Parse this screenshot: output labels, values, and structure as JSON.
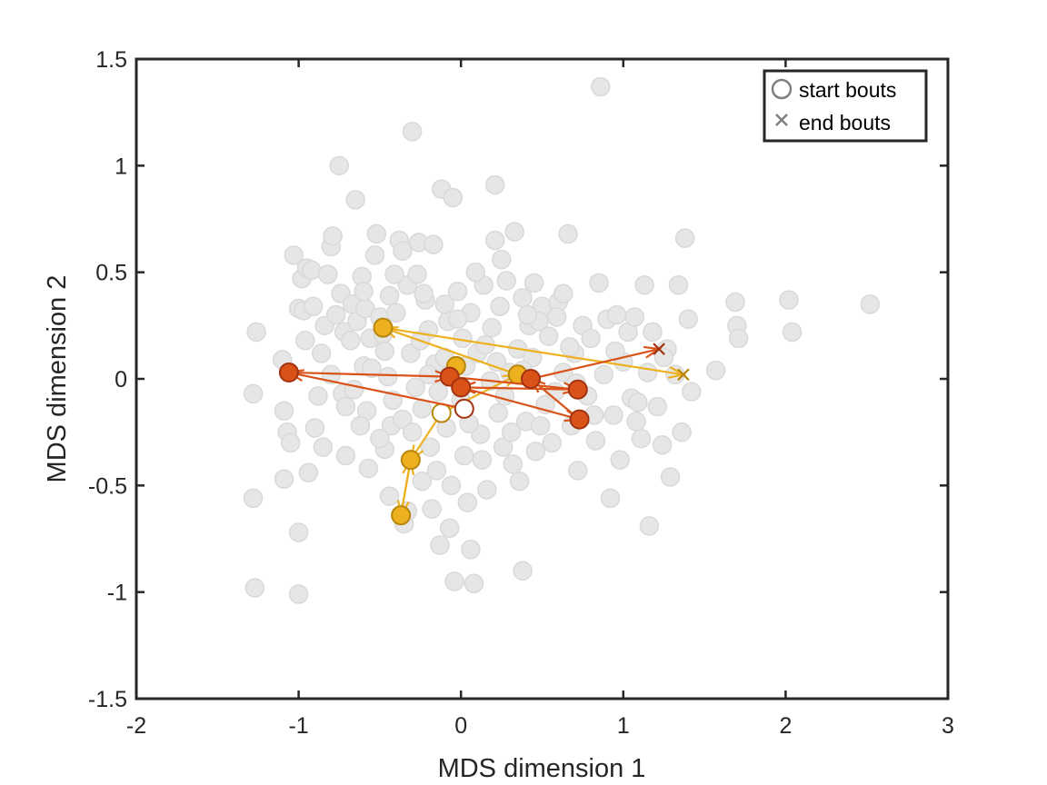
{
  "chart_data": {
    "type": "scatter",
    "xlabel": "MDS dimension 1",
    "ylabel": "MDS dimension 2",
    "xlim": [
      -2,
      3
    ],
    "ylim": [
      -1.5,
      1.5
    ],
    "xticks": [
      -2,
      -1,
      0,
      1,
      2,
      3
    ],
    "yticks": [
      -1.5,
      -1,
      -0.5,
      0,
      0.5,
      1,
      1.5
    ],
    "xtick_labels": [
      "-2",
      "-1",
      "0",
      "1",
      "2",
      "3"
    ],
    "ytick_labels": [
      "-1.5",
      "-1",
      "-0.5",
      "0",
      "0.5",
      "1",
      "1.5"
    ],
    "grid": false,
    "legend": {
      "placement": "top-right",
      "entries": [
        {
          "label": "start bouts",
          "marker": "circle"
        },
        {
          "label": "end bouts",
          "marker": "x"
        }
      ]
    },
    "colors": {
      "background_points": "#e6e6e6",
      "background_edge": "#d9d9d9",
      "orange_series": "#edb120",
      "orange_edge": "#b8860b",
      "red_series": "#d95319",
      "red_edge": "#a23210",
      "legend_marker": "#808080"
    },
    "background_points": [
      [
        -1.28,
        -0.07
      ],
      [
        -1.26,
        0.22
      ],
      [
        -1.28,
        -0.56
      ],
      [
        -1.27,
        -0.98
      ],
      [
        -1.1,
        0.09
      ],
      [
        -1.09,
        -0.15
      ],
      [
        -1.07,
        -0.25
      ],
      [
        -1.09,
        -0.47
      ],
      [
        -1.03,
        0.58
      ],
      [
        -1.0,
        0.33
      ],
      [
        -0.98,
        0.47
      ],
      [
        -1.0,
        -0.72
      ],
      [
        -1.0,
        -1.01
      ],
      [
        -0.97,
        0.32
      ],
      [
        -0.94,
        -0.44
      ],
      [
        -0.95,
        0.52
      ],
      [
        -0.92,
        0.51
      ],
      [
        -0.91,
        0.34
      ],
      [
        -0.9,
        -0.23
      ],
      [
        -0.86,
        0.12
      ],
      [
        -0.84,
        0.25
      ],
      [
        -0.82,
        0.49
      ],
      [
        -0.8,
        0.62
      ],
      [
        -0.79,
        0.67
      ],
      [
        -0.75,
        1.0
      ],
      [
        -0.74,
        0.4
      ],
      [
        -0.73,
        -0.07
      ],
      [
        -0.72,
        0.22
      ],
      [
        -0.71,
        -0.36
      ],
      [
        -0.67,
        0.35
      ],
      [
        -0.65,
        0.84
      ],
      [
        -0.64,
        0.27
      ],
      [
        -0.61,
        0.48
      ],
      [
        -0.6,
        0.06
      ],
      [
        -0.59,
        0.33
      ],
      [
        -0.58,
        -0.15
      ],
      [
        -0.56,
        0.19
      ],
      [
        -0.53,
        0.58
      ],
      [
        -0.52,
        0.68
      ],
      [
        -0.5,
        0.29
      ],
      [
        -0.48,
        0.21
      ],
      [
        -0.47,
        -0.33
      ],
      [
        -0.45,
        0.01
      ],
      [
        -0.44,
        0.39
      ],
      [
        -0.43,
        -0.22
      ],
      [
        -0.4,
        0.31
      ],
      [
        -0.38,
        0.65
      ],
      [
        -0.36,
        0.6
      ],
      [
        -0.35,
        -0.68
      ],
      [
        -0.33,
        0.44
      ],
      [
        -0.31,
        0.12
      ],
      [
        -0.3,
        1.16
      ],
      [
        -0.28,
        -0.04
      ],
      [
        -0.27,
        0.49
      ],
      [
        -0.26,
        0.64
      ],
      [
        -0.24,
        -0.14
      ],
      [
        -0.22,
        0.37
      ],
      [
        -0.2,
        0.23
      ],
      [
        -0.19,
        -0.32
      ],
      [
        -0.17,
        0.63
      ],
      [
        -0.16,
        0.07
      ],
      [
        -0.15,
        -0.43
      ],
      [
        -0.13,
        -0.78
      ],
      [
        -0.12,
        0.89
      ],
      [
        -0.1,
        0.1
      ],
      [
        -0.09,
        -0.23
      ],
      [
        -0.08,
        0.27
      ],
      [
        -0.06,
        -0.5
      ],
      [
        -0.05,
        0.85
      ],
      [
        -0.04,
        -0.95
      ],
      [
        -0.02,
        0.41
      ],
      [
        0.0,
        -0.1
      ],
      [
        0.01,
        0.19
      ],
      [
        0.02,
        -0.36
      ],
      [
        0.04,
        -0.58
      ],
      [
        0.06,
        0.31
      ],
      [
        0.08,
        -0.96
      ],
      [
        0.1,
        0.12
      ],
      [
        0.12,
        -0.26
      ],
      [
        0.14,
        0.44
      ],
      [
        0.16,
        -0.52
      ],
      [
        0.18,
        -0.01
      ],
      [
        0.19,
        0.24
      ],
      [
        0.21,
        0.65
      ],
      [
        0.23,
        -0.16
      ],
      [
        0.24,
        0.34
      ],
      [
        0.21,
        0.91
      ],
      [
        0.26,
        -0.32
      ],
      [
        0.28,
        0.46
      ],
      [
        0.3,
        0.03
      ],
      [
        0.32,
        -0.4
      ],
      [
        0.33,
        0.69
      ],
      [
        0.35,
        0.14
      ],
      [
        0.36,
        -0.48
      ],
      [
        0.38,
        0.38
      ],
      [
        0.4,
        -0.2
      ],
      [
        0.42,
        0.25
      ],
      [
        0.44,
        0.1
      ],
      [
        0.46,
        -0.34
      ],
      [
        0.38,
        -0.9
      ],
      [
        0.5,
        0.34
      ],
      [
        0.52,
        -0.12
      ],
      [
        0.54,
        0.2
      ],
      [
        0.56,
        -0.3
      ],
      [
        0.6,
        0.36
      ],
      [
        0.63,
        0.03
      ],
      [
        0.66,
        0.68
      ],
      [
        0.68,
        -0.22
      ],
      [
        0.7,
        0.12
      ],
      [
        0.72,
        -0.43
      ],
      [
        0.75,
        0.25
      ],
      [
        0.78,
        -0.08
      ],
      [
        0.8,
        0.19
      ],
      [
        0.83,
        -0.29
      ],
      [
        0.85,
        0.45
      ],
      [
        0.86,
        1.37
      ],
      [
        0.88,
        0.02
      ],
      [
        0.9,
        0.28
      ],
      [
        0.92,
        -0.56
      ],
      [
        0.94,
        -0.17
      ],
      [
        0.96,
        0.3
      ],
      [
        0.98,
        -0.38
      ],
      [
        1.0,
        0.08
      ],
      [
        1.03,
        0.22
      ],
      [
        1.05,
        -0.09
      ],
      [
        1.07,
        0.29
      ],
      [
        1.08,
        -0.2
      ],
      [
        1.11,
        -0.28
      ],
      [
        1.13,
        0.44
      ],
      [
        1.15,
        0.03
      ],
      [
        1.16,
        -0.69
      ],
      [
        1.18,
        0.22
      ],
      [
        1.21,
        -0.13
      ],
      [
        1.24,
        -0.31
      ],
      [
        1.27,
        0.14
      ],
      [
        1.29,
        -0.46
      ],
      [
        1.32,
        0.02
      ],
      [
        1.34,
        0.44
      ],
      [
        1.36,
        -0.25
      ],
      [
        1.38,
        0.66
      ],
      [
        1.4,
        0.28
      ],
      [
        1.42,
        -0.06
      ],
      [
        1.57,
        0.04
      ],
      [
        1.69,
        0.36
      ],
      [
        1.7,
        0.25
      ],
      [
        1.71,
        0.19
      ],
      [
        2.02,
        0.37
      ],
      [
        2.04,
        0.22
      ],
      [
        2.52,
        0.35
      ],
      [
        -0.55,
        0.05
      ],
      [
        -0.68,
        0.18
      ],
      [
        -0.62,
        -0.22
      ],
      [
        -0.47,
        0.13
      ],
      [
        -0.36,
        -0.19
      ],
      [
        -0.25,
        0.18
      ],
      [
        -0.14,
        -0.06
      ],
      [
        -0.02,
        0.28
      ],
      [
        0.05,
        -0.21
      ],
      [
        0.15,
        0.16
      ],
      [
        0.27,
        -0.08
      ],
      [
        0.38,
        0.04
      ],
      [
        0.48,
        0.27
      ],
      [
        0.58,
        -0.06
      ],
      [
        0.67,
        0.15
      ],
      [
        -0.8,
        0.02
      ],
      [
        -0.71,
        -0.13
      ],
      [
        -0.88,
        -0.08
      ],
      [
        -0.77,
        0.3
      ],
      [
        -0.66,
        -0.05
      ],
      [
        -0.5,
        -0.28
      ],
      [
        -0.42,
        -0.1
      ],
      [
        -0.3,
        -0.25
      ],
      [
        -0.2,
        0.02
      ],
      [
        -0.1,
        0.35
      ],
      [
        0.03,
        0.06
      ],
      [
        0.13,
        -0.38
      ],
      [
        0.22,
        0.08
      ],
      [
        0.31,
        -0.25
      ],
      [
        0.41,
        0.3
      ],
      [
        0.49,
        -0.22
      ],
      [
        0.59,
        0.29
      ],
      [
        0.71,
        -0.02
      ],
      [
        0.82,
        -0.17
      ],
      [
        0.95,
        0.13
      ],
      [
        1.09,
        -0.11
      ],
      [
        1.25,
        0.1
      ],
      [
        -1.05,
        -0.3
      ],
      [
        -0.96,
        0.18
      ],
      [
        -0.85,
        -0.32
      ],
      [
        -0.57,
        -0.42
      ],
      [
        -0.44,
        -0.55
      ],
      [
        -0.33,
        -0.62
      ],
      [
        -0.24,
        -0.48
      ],
      [
        -0.18,
        -0.61
      ],
      [
        -0.07,
        -0.7
      ],
      [
        0.06,
        -0.8
      ],
      [
        -0.6,
        0.41
      ],
      [
        -0.41,
        0.49
      ],
      [
        -0.23,
        0.4
      ],
      [
        0.09,
        0.5
      ],
      [
        0.25,
        0.56
      ],
      [
        0.45,
        0.45
      ],
      [
        0.63,
        0.4
      ]
    ],
    "series": [
      {
        "color_key": "orange_series",
        "start": [
          -0.12,
          -0.16
        ],
        "points": [
          [
            -0.48,
            0.24
          ],
          [
            -0.03,
            0.06
          ],
          [
            0.35,
            0.02
          ],
          [
            -0.31,
            -0.38
          ],
          [
            -0.37,
            -0.64
          ]
        ],
        "end": [
          1.37,
          0.02
        ],
        "arrows": [
          [
            [
              -0.12,
              -0.16
            ],
            [
              -0.31,
              -0.38
            ]
          ],
          [
            [
              -0.31,
              -0.38
            ],
            [
              -0.37,
              -0.64
            ]
          ],
          [
            [
              -0.37,
              -0.64
            ],
            [
              -0.31,
              -0.38
            ]
          ],
          [
            [
              -0.12,
              -0.16
            ],
            [
              0.35,
              0.02
            ]
          ],
          [
            [
              0.35,
              0.02
            ],
            [
              -0.48,
              0.24
            ]
          ],
          [
            [
              -0.48,
              0.24
            ],
            [
              1.37,
              0.02
            ]
          ]
        ]
      },
      {
        "color_key": "red_series",
        "start": [
          0.02,
          -0.14
        ],
        "points": [
          [
            -1.06,
            0.03
          ],
          [
            -0.07,
            0.01
          ],
          [
            0.0,
            -0.04
          ],
          [
            0.43,
            0.0
          ],
          [
            0.72,
            -0.05
          ],
          [
            0.73,
            -0.19
          ]
        ],
        "end": [
          1.22,
          0.14
        ],
        "arrows": [
          [
            [
              0.02,
              -0.14
            ],
            [
              -1.06,
              0.03
            ]
          ],
          [
            [
              -1.06,
              0.03
            ],
            [
              -0.07,
              0.01
            ]
          ],
          [
            [
              -0.07,
              0.01
            ],
            [
              0.72,
              -0.05
            ]
          ],
          [
            [
              0.72,
              -0.05
            ],
            [
              0.0,
              -0.04
            ]
          ],
          [
            [
              0.0,
              -0.04
            ],
            [
              0.73,
              -0.19
            ]
          ],
          [
            [
              0.73,
              -0.19
            ],
            [
              0.43,
              0.0
            ]
          ],
          [
            [
              0.43,
              0.0
            ],
            [
              1.22,
              0.14
            ]
          ]
        ]
      }
    ]
  }
}
